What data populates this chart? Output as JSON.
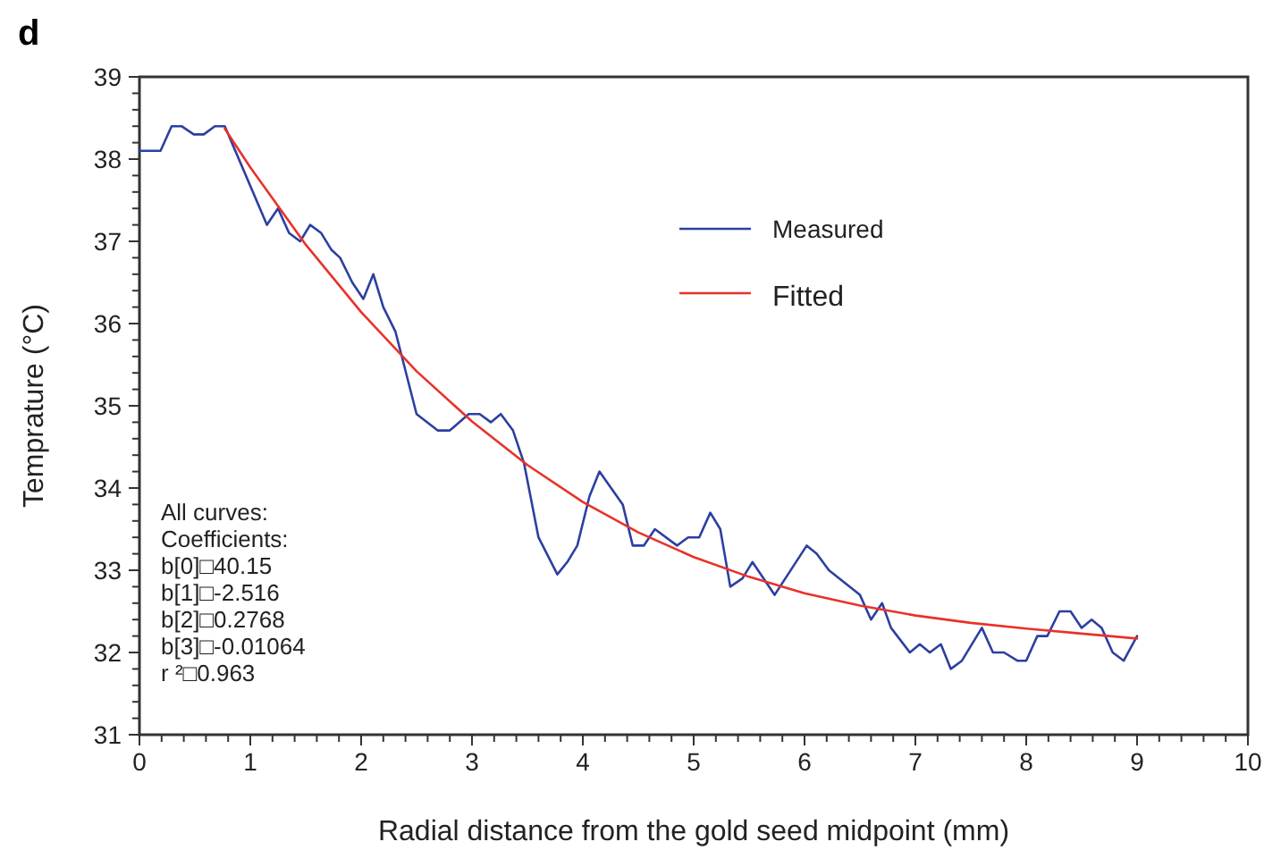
{
  "chart_data": {
    "type": "line",
    "title": "d",
    "xlabel": "Radial distance from the gold seed midpoint (mm)",
    "ylabel": "Temprature (°C)",
    "xlim": [
      0,
      10
    ],
    "ylim": [
      31,
      39
    ],
    "xticks": [
      0,
      {
        "value": 0.2,
        "label": null
      },
      {
        "value": 0.4,
        "label": null
      },
      {
        "value": 0.6,
        "label": null
      },
      {
        "value": 0.8,
        "label": null
      },
      1,
      {
        "value": 1.2,
        "label": null
      },
      {
        "value": 1.4,
        "label": null
      },
      {
        "value": 1.6,
        "label": null
      },
      {
        "value": 1.8,
        "label": null
      },
      2,
      {
        "value": 2.2,
        "label": null
      },
      {
        "value": 2.4,
        "label": null
      },
      {
        "value": 2.6,
        "label": null
      },
      {
        "value": 2.8,
        "label": null
      },
      3,
      {
        "value": 3.2,
        "label": null
      },
      {
        "value": 3.4,
        "label": null
      },
      {
        "value": 3.6,
        "label": null
      },
      {
        "value": 3.8,
        "label": null
      },
      4,
      {
        "value": 4.2,
        "label": null
      },
      {
        "value": 4.4,
        "label": null
      },
      {
        "value": 4.6,
        "label": null
      },
      {
        "value": 4.8,
        "label": null
      },
      5,
      {
        "value": 5.2,
        "label": null
      },
      {
        "value": 5.4,
        "label": null
      },
      {
        "value": 5.6,
        "label": null
      },
      {
        "value": 5.8,
        "label": null
      },
      6,
      {
        "value": 6.2,
        "label": null
      },
      {
        "value": 6.4,
        "label": null
      },
      {
        "value": 6.6,
        "label": null
      },
      {
        "value": 6.8,
        "label": null
      },
      7,
      {
        "value": 7.2,
        "label": null
      },
      {
        "value": 7.4,
        "label": null
      },
      {
        "value": 7.6,
        "label": null
      },
      {
        "value": 7.8,
        "label": null
      },
      8,
      {
        "value": 8.2,
        "label": null
      },
      {
        "value": 8.4,
        "label": null
      },
      {
        "value": 8.6,
        "label": null
      },
      {
        "value": 8.8,
        "label": null
      },
      9,
      {
        "value": 9.2,
        "label": null
      },
      {
        "value": 9.4,
        "label": null
      },
      {
        "value": 9.6,
        "label": null
      },
      {
        "value": 9.8,
        "label": null
      },
      10
    ],
    "yticks": [
      31,
      {
        "value": 31.2,
        "label": null
      },
      {
        "value": 31.4,
        "label": null
      },
      {
        "value": 31.6,
        "label": null
      },
      {
        "value": 31.8,
        "label": null
      },
      32,
      {
        "value": 32.2,
        "label": null
      },
      {
        "value": 32.4,
        "label": null
      },
      {
        "value": 32.6,
        "label": null
      },
      {
        "value": 32.8,
        "label": null
      },
      33,
      {
        "value": 33.2,
        "label": null
      },
      {
        "value": 33.4,
        "label": null
      },
      {
        "value": 33.6,
        "label": null
      },
      {
        "value": 33.8,
        "label": null
      },
      34,
      {
        "value": 34.2,
        "label": null
      },
      {
        "value": 34.4,
        "label": null
      },
      {
        "value": 34.6,
        "label": null
      },
      {
        "value": 34.8,
        "label": null
      },
      35,
      {
        "value": 35.2,
        "label": null
      },
      {
        "value": 35.4,
        "label": null
      },
      {
        "value": 35.6,
        "label": null
      },
      {
        "value": 35.8,
        "label": null
      },
      36,
      {
        "value": 36.2,
        "label": null
      },
      {
        "value": 36.4,
        "label": null
      },
      {
        "value": 36.6,
        "label": null
      },
      {
        "value": 36.8,
        "label": null
      },
      37,
      {
        "value": 37.2,
        "label": null
      },
      {
        "value": 37.4,
        "label": null
      },
      {
        "value": 37.6,
        "label": null
      },
      {
        "value": 37.8,
        "label": null
      },
      38,
      {
        "value": 38.2,
        "label": null
      },
      {
        "value": 38.4,
        "label": null
      },
      {
        "value": 38.6,
        "label": null
      },
      {
        "value": 38.8,
        "label": null
      },
      39
    ],
    "grid": false,
    "legend": "top right",
    "line_style": "solid",
    "series": [
      {
        "name": "Measured",
        "color": "#2d3fa0",
        "x": [
          0,
          0.19,
          0.29,
          0.38,
          0.49,
          0.58,
          0.68,
          0.77,
          1.15,
          1.25,
          1.35,
          1.45,
          1.54,
          1.64,
          1.73,
          1.81,
          1.92,
          2.02,
          2.11,
          2.2,
          2.31,
          2.5,
          2.69,
          2.8,
          2.97,
          3.07,
          3.17,
          3.26,
          3.37,
          3.47,
          3.6,
          3.77,
          3.86,
          3.95,
          4.06,
          4.15,
          4.36,
          4.45,
          4.55,
          4.65,
          4.85,
          4.95,
          5.05,
          5.15,
          5.24,
          5.33,
          5.44,
          5.53,
          5.73,
          6.02,
          6.11,
          6.22,
          6.5,
          6.6,
          6.7,
          6.78,
          6.95,
          7.04,
          7.13,
          7.23,
          7.32,
          7.42,
          7.6,
          7.7,
          7.8,
          7.92,
          8.0,
          8.1,
          8.19,
          8.3,
          8.4,
          8.5,
          8.59,
          8.68,
          8.78,
          8.88,
          9.0
        ],
        "values": [
          38.1,
          38.1,
          38.4,
          38.4,
          38.3,
          38.3,
          38.4,
          38.4,
          37.2,
          37.4,
          37.1,
          37.0,
          37.2,
          37.1,
          36.9,
          36.8,
          36.5,
          36.3,
          36.6,
          36.2,
          35.9,
          34.9,
          34.7,
          34.7,
          34.9,
          34.9,
          34.8,
          34.9,
          34.7,
          34.3,
          33.4,
          32.95,
          33.1,
          33.3,
          33.9,
          34.2,
          33.8,
          33.3,
          33.3,
          33.5,
          33.3,
          33.4,
          33.4,
          33.7,
          33.5,
          32.8,
          32.9,
          33.1,
          32.7,
          33.3,
          33.2,
          33.0,
          32.7,
          32.4,
          32.6,
          32.3,
          32.0,
          32.1,
          32.0,
          32.1,
          31.8,
          31.9,
          32.3,
          32.0,
          32.0,
          31.9,
          31.9,
          32.2,
          32.2,
          32.5,
          32.5,
          32.3,
          32.4,
          32.3,
          32.0,
          31.9,
          32.2
        ]
      },
      {
        "name": "Fitted",
        "color": "#e8322a",
        "x": [
          0.77,
          1,
          1.5,
          2,
          2.5,
          3,
          3.5,
          4,
          4.5,
          5,
          5.5,
          6,
          6.5,
          7,
          7.5,
          8,
          8.5,
          9
        ],
        "values": [
          38.37,
          37.9,
          36.96,
          36.14,
          35.42,
          34.81,
          34.28,
          33.83,
          33.46,
          33.16,
          32.92,
          32.72,
          32.57,
          32.45,
          32.36,
          32.29,
          32.23,
          32.17
        ]
      }
    ],
    "annotations": [
      "All curves:",
      "Coefficients:",
      "b[0]□40.15",
      "b[1]□-2.516",
      "b[2]□0.2768",
      "b[3]□-0.01064",
      "r ²□0.963"
    ]
  }
}
